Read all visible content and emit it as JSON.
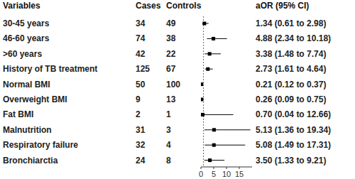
{
  "chart_data": {
    "type": "forest",
    "columns": [
      "Variables",
      "Cases",
      "Controls",
      "aOR (95% CI)"
    ],
    "categories": [
      "30-45 years",
      "46-60 years",
      ">60 years",
      "History of TB treatment",
      "Normal BMI",
      "Overweight BMI",
      "Fat BMI",
      "Malnutrition",
      "Respiratory failure",
      "Bronchiarctia"
    ],
    "cases": [
      34,
      74,
      42,
      125,
      50,
      9,
      2,
      31,
      32,
      24
    ],
    "controls": [
      49,
      38,
      22,
      67,
      100,
      13,
      1,
      3,
      4,
      8
    ],
    "values": [
      1.34,
      4.88,
      3.38,
      2.73,
      0.21,
      0.26,
      0.7,
      5.13,
      5.08,
      3.5
    ],
    "ci_lower": [
      0.61,
      2.34,
      1.48,
      1.61,
      0.12,
      0.09,
      0.04,
      1.36,
      1.49,
      1.33
    ],
    "ci_upper": [
      2.98,
      10.18,
      7.74,
      4.64,
      0.37,
      0.75,
      12.66,
      19.34,
      17.31,
      9.21
    ],
    "value_labels": [
      "1.34 (0.61 to 2.98)",
      "4.88 (2.34 to 10.18)",
      "3.38 (1.48 to 7.74)",
      "2.73 (1.61 to 4.64)",
      "0.21 (0.12 to 0.37)",
      "0.26 (0.09 to 0.75)",
      "0.70 (0.04 to 12.66)",
      "5.13 (1.36 to 19.34)",
      "5.08 (1.49 to 17.31)",
      "3.50 (1.33 to 9.21)"
    ],
    "reference": 1,
    "xlim": [
      0,
      20
    ],
    "xticks": [
      0,
      5,
      10,
      15
    ],
    "color": "#000000",
    "data_labels": true
  }
}
